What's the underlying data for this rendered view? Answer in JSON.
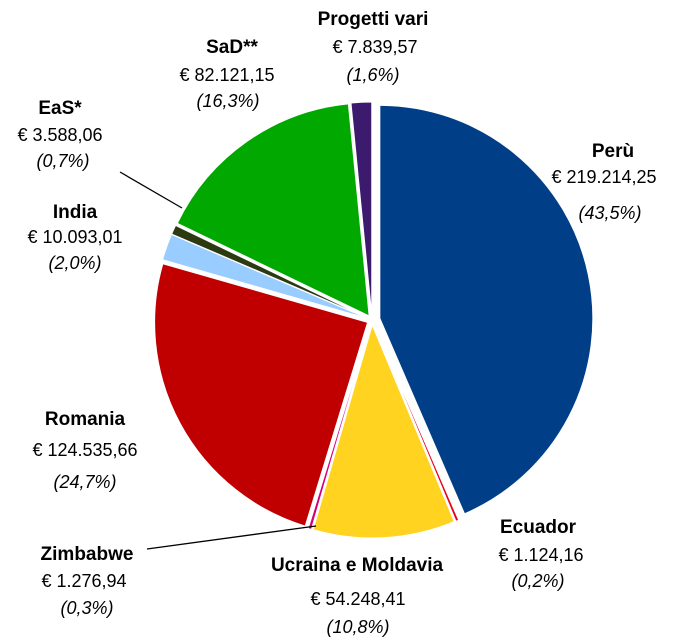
{
  "chart_data": {
    "type": "pie",
    "categories": [
      "Perù",
      "Ecuador",
      "Ucraina e Moldavia",
      "Zimbabwe",
      "Romania",
      "India",
      "EaS*",
      "SaD**",
      "Progetti vari"
    ],
    "values": [
      219214.25,
      1124.16,
      54248.41,
      1276.94,
      124535.66,
      10093.01,
      3588.06,
      82121.15,
      7839.57
    ],
    "value_labels": [
      "€ 219.214,25",
      "€ 1.124,16",
      "€ 54.248,41",
      "€ 1.276,94",
      "€ 124.535,66",
      "€ 10.093,01",
      "€ 3.588,06",
      "€ 82.121,15",
      "€ 7.839,57"
    ],
    "percent_labels": [
      "(43,5%)",
      "(0,2%)",
      "(10,8%)",
      "(0,3%)",
      "(24,7%)",
      "(2,0%)",
      "(0,7%)",
      "(16,3%)",
      "(1,6%)"
    ],
    "colors": [
      "#003f87",
      "#e8001c",
      "#ffd320",
      "#d4007a",
      "#c00000",
      "#99ccff",
      "#2b3a10",
      "#00a800",
      "#3c1a6e"
    ]
  }
}
